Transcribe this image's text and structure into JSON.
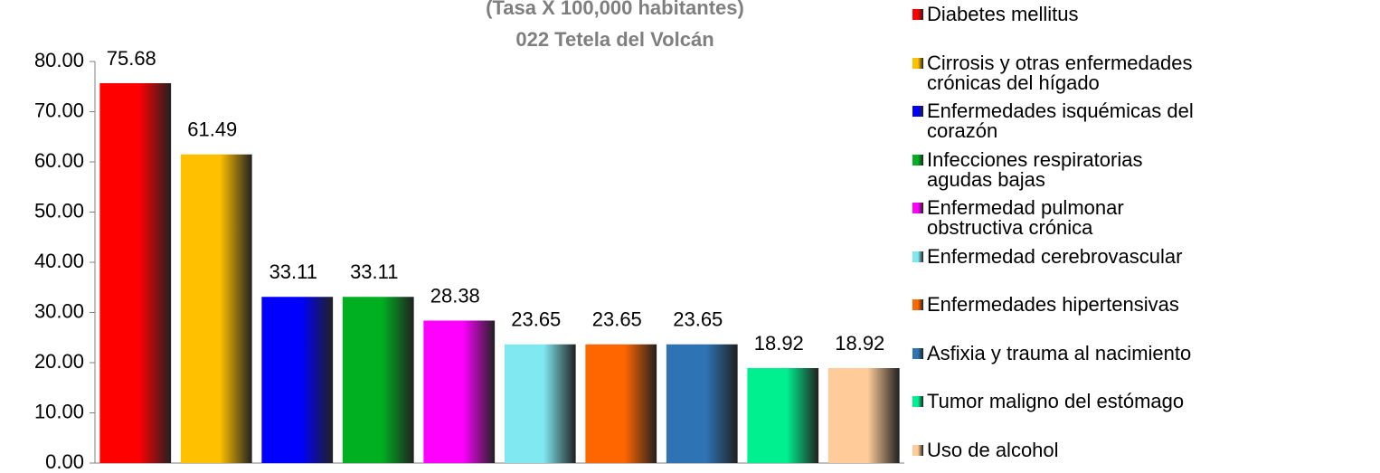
{
  "chart_data": {
    "type": "bar",
    "title": [
      "(Tasa X 100,000 habitantes)",
      "022 Tetela del Volcán"
    ],
    "categories": [
      "Diabetes mellitus",
      "Cirrosis y otras enfermedades crónicas del hígado",
      "Enfermedades isquémicas del corazón",
      "Infecciones respiratorias agudas bajas",
      "Enfermedad pulmonar obstructiva crónica",
      "Enfermedad cerebrovascular",
      "Enfermedades hipertensivas",
      "Asfixia y trauma al nacimiento",
      "Tumor maligno del estómago",
      "Uso de alcohol"
    ],
    "values": [
      75.68,
      61.49,
      33.11,
      33.11,
      28.38,
      23.65,
      23.65,
      23.65,
      18.92,
      18.92
    ],
    "colors": [
      "#ff0000",
      "#ffc000",
      "#0000ff",
      "#00b020",
      "#ff00ff",
      "#80e8f0",
      "#ff6600",
      "#2e74b5",
      "#00f090",
      "#ffcc99"
    ],
    "ylim": [
      0,
      80
    ],
    "yticks": [
      {
        "value": 0,
        "label": "0.00"
      },
      {
        "value": 10,
        "label": "10.00"
      },
      {
        "value": 20,
        "label": "20.00"
      },
      {
        "value": 30,
        "label": "30.00"
      },
      {
        "value": 40,
        "label": "40.00"
      },
      {
        "value": 50,
        "label": "50.00"
      },
      {
        "value": 60,
        "label": "60.00"
      },
      {
        "value": 70,
        "label": "70.00"
      },
      {
        "value": 80,
        "label": "80.00"
      }
    ]
  }
}
